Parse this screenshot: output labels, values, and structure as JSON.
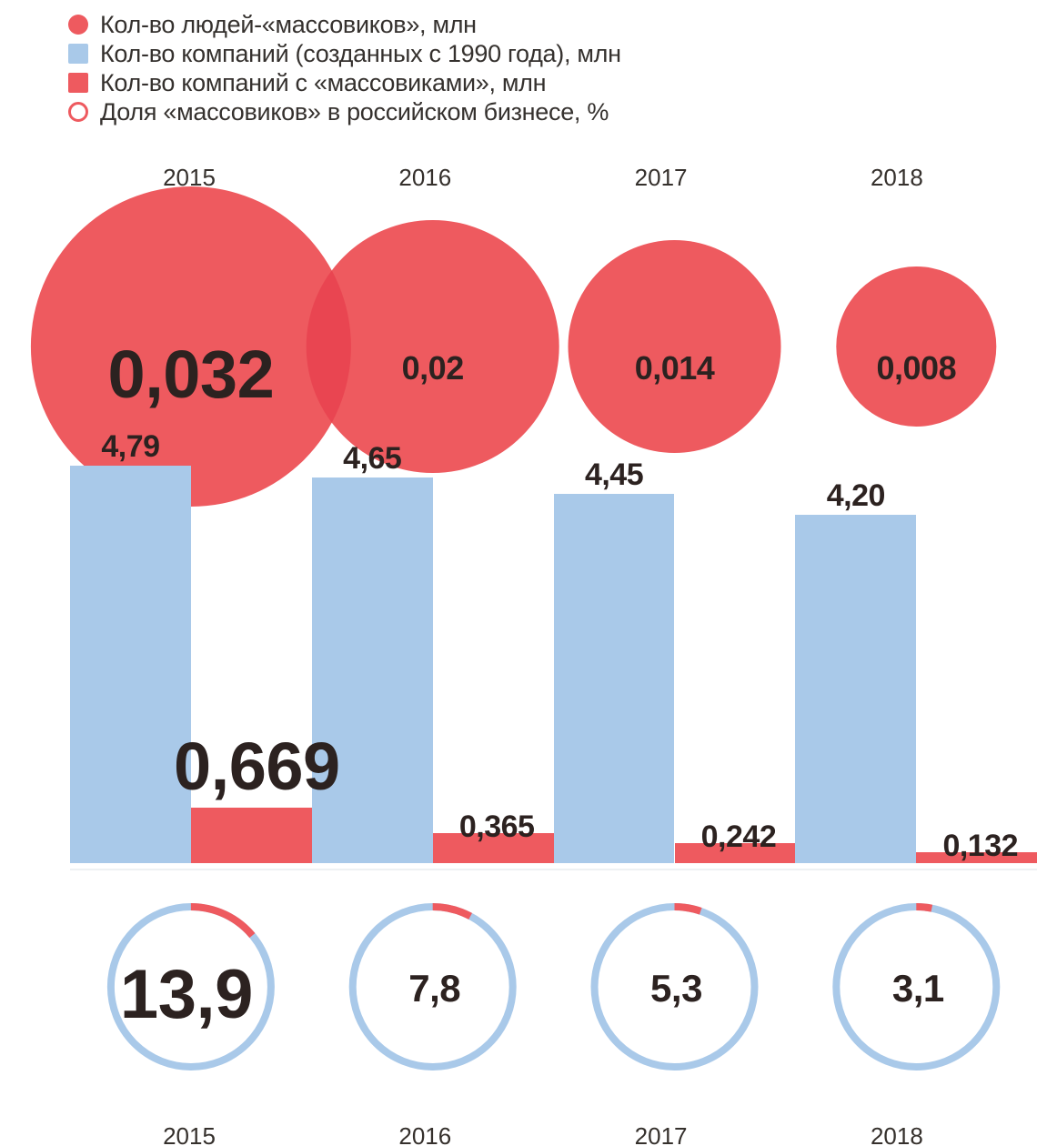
{
  "legend": {
    "items": [
      {
        "label": "Кол-во людей-«массовиков», млн",
        "marker": "filled-circle",
        "color": "#ee5a5f"
      },
      {
        "label": "Кол-во компаний (созданных с 1990 года), млн",
        "marker": "square",
        "color": "#a9c9e9"
      },
      {
        "label": "Кол-во компаний с «массовиками», млн",
        "marker": "square",
        "color": "#ee5a5f"
      },
      {
        "label": "Доля «массовиков» в российском бизнесе, %",
        "marker": "open-circle",
        "color": "#ee5a5f"
      }
    ]
  },
  "chart_data": {
    "type": "combo",
    "description": "Per-year bubble (people), grouped bars (companies), and donut share rings",
    "categories": [
      "2015",
      "2016",
      "2017",
      "2018"
    ],
    "series": [
      {
        "name": "Кол-во людей-«массовиков», млн",
        "chart": "bubble",
        "values": [
          0.032,
          0.02,
          0.014,
          0.008
        ],
        "labels": [
          "0,032",
          "0,02",
          "0,014",
          "0,008"
        ],
        "color": "#ee5a5f",
        "overlap_color": "#e94551"
      },
      {
        "name": "Кол-во компаний (созданных с 1990 года), млн",
        "chart": "bar",
        "values": [
          4.79,
          4.65,
          4.45,
          4.2
        ],
        "labels": [
          "4,79",
          "4,65",
          "4,45",
          "4,20"
        ],
        "color": "#a9c9e9"
      },
      {
        "name": "Кол-во компаний с «массовиками», млн",
        "chart": "bar",
        "values": [
          0.669,
          0.365,
          0.242,
          0.132
        ],
        "labels": [
          "0,669",
          "0,365",
          "0,242",
          "0,132"
        ],
        "color": "#ee5a5f"
      },
      {
        "name": "Доля «массовиков» в российском бизнесе, %",
        "chart": "donut",
        "unit": "%",
        "values": [
          13.9,
          7.8,
          5.3,
          3.1
        ],
        "labels": [
          "13,9",
          "7,8",
          "5,3",
          "3,1"
        ],
        "ring_color": "#a9c9e9",
        "arc_color": "#ee5a5f"
      }
    ],
    "value_axis": {
      "visible": false,
      "unit": "млн"
    },
    "grid": false,
    "legend_position": "top-left"
  },
  "colors": {
    "background": "#ffffff",
    "number_text": "#2c2220",
    "year_text": "#35302c",
    "red": "#ee5a5f",
    "bubble_overlap": "#e94551",
    "blue": "#a9c9e9",
    "baseline_rule": "#eef1f3"
  }
}
